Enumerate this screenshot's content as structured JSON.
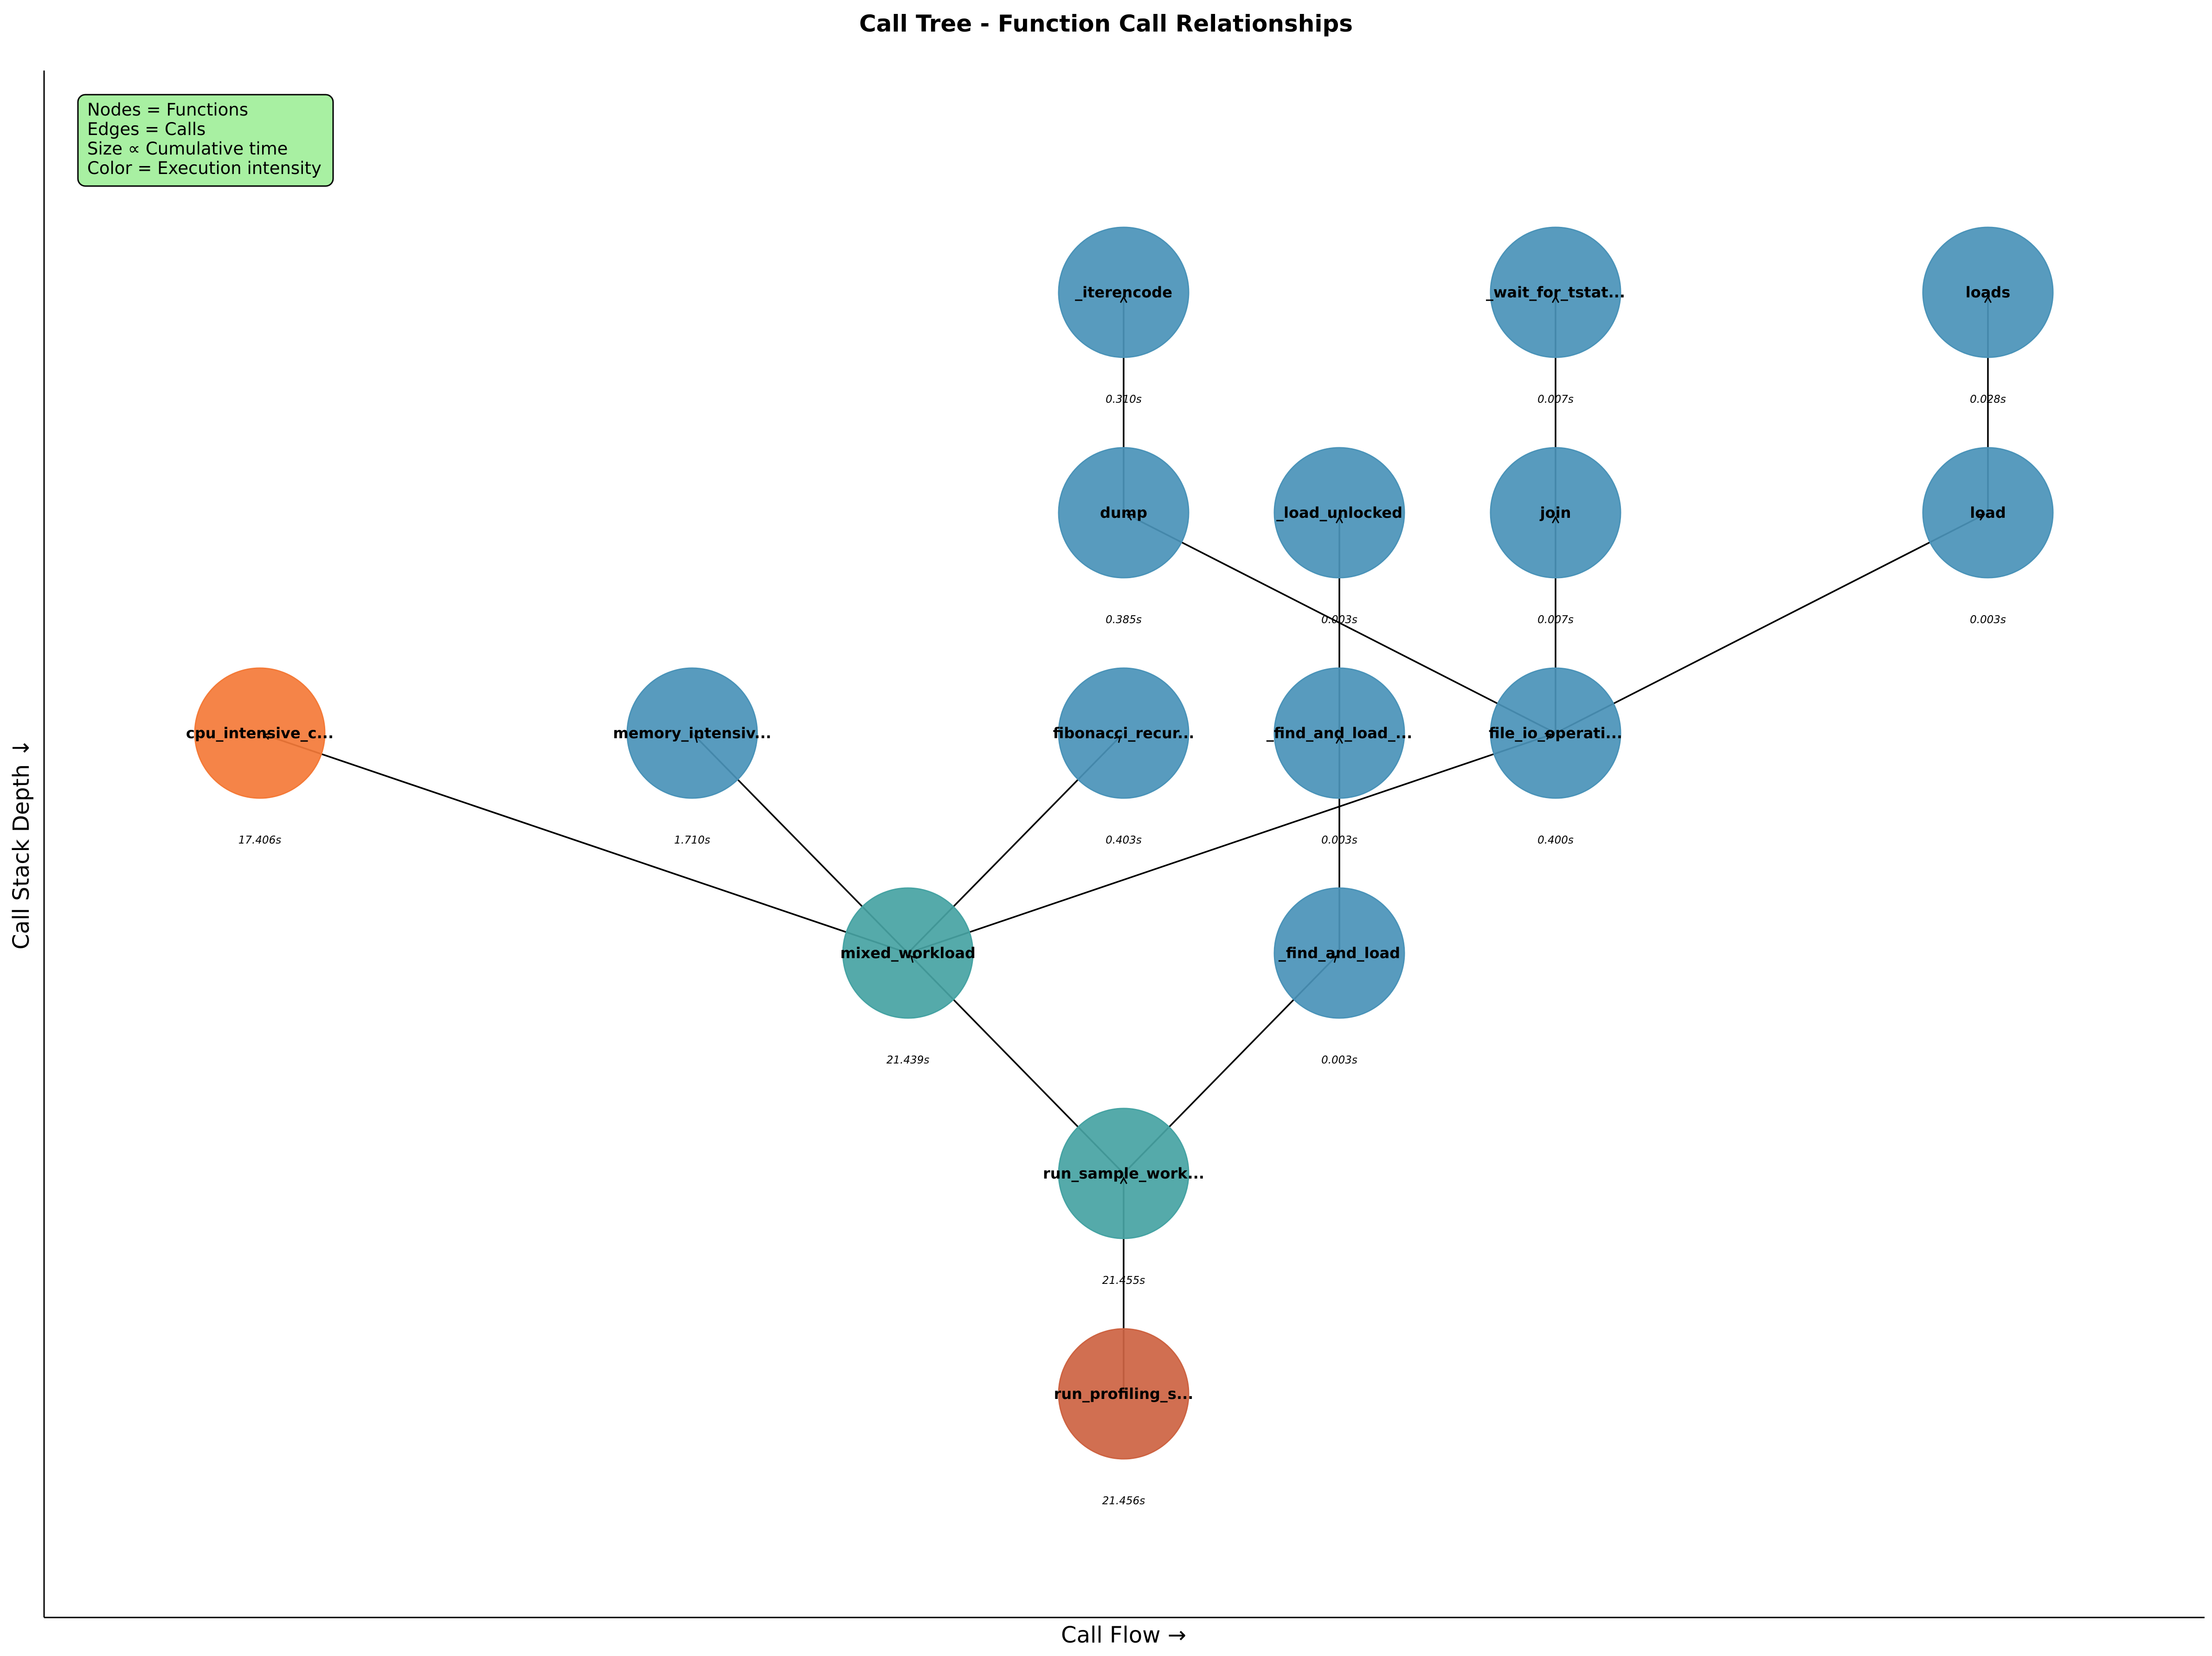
{
  "title": "Call Tree - Function Call Relationships",
  "xlabel": "Call Flow →",
  "ylabel": "Call Stack Depth ↓",
  "legend": {
    "lines": [
      "Nodes = Functions",
      "Edges = Calls",
      "Size ∝ Cumulative time",
      "Color = Execution intensity"
    ],
    "background": "#a8f0a2"
  },
  "colors": {
    "blue": "#4a93b8",
    "teal": "#46a3a3",
    "orange": "#f47a38",
    "red": "#cd6342"
  },
  "nodes": [
    {
      "id": "run_profiling",
      "label": "run_profiling_s...",
      "time": "21.456s",
      "color": "red"
    },
    {
      "id": "run_sample",
      "label": "run_sample_work...",
      "time": "21.455s",
      "color": "teal"
    },
    {
      "id": "mixed_workload",
      "label": "mixed_workload",
      "time": "21.439s",
      "color": "teal"
    },
    {
      "id": "find_and_load",
      "label": "_find_and_load",
      "time": "0.003s",
      "color": "blue"
    },
    {
      "id": "cpu_intensive",
      "label": "cpu_intensive_c...",
      "time": "17.406s",
      "color": "orange"
    },
    {
      "id": "memory_intensive",
      "label": "memory_intensiv...",
      "time": "1.710s",
      "color": "blue"
    },
    {
      "id": "fibonacci",
      "label": "fibonacci_recur...",
      "time": "0.403s",
      "color": "blue"
    },
    {
      "id": "find_and_load_unlocked",
      "label": "_find_and_load_...",
      "time": "0.003s",
      "color": "blue"
    },
    {
      "id": "file_io",
      "label": "file_io_operati...",
      "time": "0.400s",
      "color": "blue"
    },
    {
      "id": "dump",
      "label": "dump",
      "time": "0.385s",
      "color": "blue"
    },
    {
      "id": "load_unlocked",
      "label": "_load_unlocked",
      "time": "0.003s",
      "color": "blue"
    },
    {
      "id": "join",
      "label": "join",
      "time": "0.007s",
      "color": "blue"
    },
    {
      "id": "load",
      "label": "load",
      "time": "0.003s",
      "color": "blue"
    },
    {
      "id": "iterencode",
      "label": "_iterencode",
      "time": "0.310s",
      "color": "blue"
    },
    {
      "id": "wait_for_tstate",
      "label": "_wait_for_tstat...",
      "time": "0.007s",
      "color": "blue"
    },
    {
      "id": "loads",
      "label": "loads",
      "time": "0.028s",
      "color": "blue"
    }
  ],
  "edges": [
    [
      "run_profiling",
      "run_sample"
    ],
    [
      "run_sample",
      "mixed_workload"
    ],
    [
      "run_sample",
      "find_and_load"
    ],
    [
      "mixed_workload",
      "cpu_intensive"
    ],
    [
      "mixed_workload",
      "memory_intensive"
    ],
    [
      "mixed_workload",
      "fibonacci"
    ],
    [
      "mixed_workload",
      "file_io"
    ],
    [
      "find_and_load",
      "find_and_load_unlocked"
    ],
    [
      "find_and_load_unlocked",
      "load_unlocked"
    ],
    [
      "file_io",
      "dump"
    ],
    [
      "file_io",
      "join"
    ],
    [
      "file_io",
      "load"
    ],
    [
      "dump",
      "iterencode"
    ],
    [
      "join",
      "wait_for_tstate"
    ],
    [
      "load",
      "loads"
    ]
  ]
}
